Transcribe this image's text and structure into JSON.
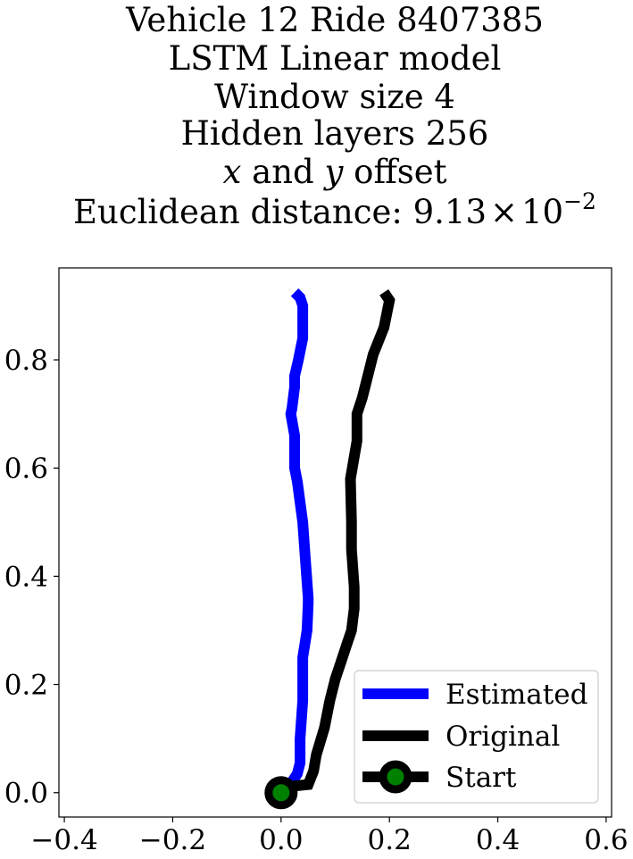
{
  "chart_data": {
    "type": "line",
    "title_lines": [
      "Vehicle 12 Ride 8407385",
      "LSTM Linear model",
      "Window size 4",
      "Hidden layers 256",
      "x and y offset",
      "Euclidean distance: 9.13 × 10⁻²"
    ],
    "title_math": {
      "x_var": "x",
      "and_word": " and ",
      "y_var": "y",
      "offset_word": " offset",
      "distance_prefix": "Euclidean distance: ",
      "distance_mantissa": "9.13",
      "times": "×",
      "distance_base": "10",
      "distance_exponent": "−2"
    },
    "xlim": [
      -0.41,
      0.61
    ],
    "ylim": [
      -0.045,
      0.97
    ],
    "x_ticks": [
      -0.4,
      -0.2,
      0.0,
      0.2,
      0.4,
      0.6
    ],
    "x_tick_labels": [
      "−0.4",
      "−0.2",
      "0.0",
      "0.2",
      "0.4",
      "0.6"
    ],
    "y_ticks": [
      0.0,
      0.2,
      0.4,
      0.6,
      0.8
    ],
    "y_tick_labels": [
      "0.0",
      "0.2",
      "0.4",
      "0.6",
      "0.8"
    ],
    "grid": false,
    "legend_position": "lower-right",
    "series": [
      {
        "name": "Estimated",
        "color": "#0000ff",
        "x": [
          0.0,
          0.01,
          0.02,
          0.03,
          0.035,
          0.035,
          0.04,
          0.04,
          0.048,
          0.05,
          0.05,
          0.045,
          0.04,
          0.03,
          0.025,
          0.025,
          0.018,
          0.02,
          0.025,
          0.025,
          0.032,
          0.04,
          0.04,
          0.035,
          0.025
        ],
        "y": [
          0.0,
          0.012,
          0.02,
          0.035,
          0.055,
          0.1,
          0.17,
          0.25,
          0.3,
          0.35,
          0.36,
          0.43,
          0.5,
          0.575,
          0.6,
          0.66,
          0.7,
          0.71,
          0.75,
          0.77,
          0.8,
          0.84,
          0.9,
          0.915,
          0.925
        ]
      },
      {
        "name": "Original",
        "color": "#000000",
        "x": [
          0.0,
          0.02,
          0.05,
          0.06,
          0.065,
          0.08,
          0.09,
          0.1,
          0.11,
          0.12,
          0.13,
          0.135,
          0.135,
          0.13,
          0.13,
          0.128,
          0.14,
          0.14,
          0.15,
          0.16,
          0.17,
          0.19,
          0.2,
          0.19
        ],
        "y": [
          0.0,
          0.012,
          0.015,
          0.04,
          0.07,
          0.12,
          0.17,
          0.21,
          0.24,
          0.27,
          0.3,
          0.34,
          0.38,
          0.45,
          0.5,
          0.58,
          0.65,
          0.7,
          0.73,
          0.77,
          0.81,
          0.86,
          0.91,
          0.925
        ]
      }
    ],
    "start_point": {
      "name": "Start",
      "x": 0.0,
      "y": 0.0,
      "marker_fill": "#008000",
      "marker_edge": "#000000"
    },
    "legend": [
      "Estimated",
      "Original",
      "Start"
    ]
  }
}
